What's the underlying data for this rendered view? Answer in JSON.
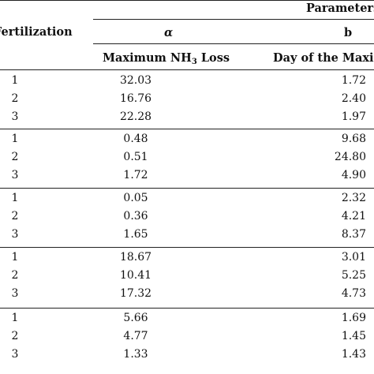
{
  "header": {
    "parameters": "Parameters",
    "fertilization": "Fertilization",
    "alpha": "α",
    "b": "b",
    "max_loss_pre": "Maximum NH",
    "max_loss_sub": "3",
    "max_loss_post": " Loss",
    "day_of_max": "Day of the Maxim"
  },
  "groups": [
    {
      "rows": [
        {
          "f": "1",
          "alpha": "32.03",
          "b": "1.72"
        },
        {
          "f": "2",
          "alpha": "16.76",
          "b": "2.40"
        },
        {
          "f": "3",
          "alpha": "22.28",
          "b": "1.97"
        }
      ]
    },
    {
      "rows": [
        {
          "f": "1",
          "alpha": "0.48",
          "b": "9.68"
        },
        {
          "f": "2",
          "alpha": "0.51",
          "b": "24.80"
        },
        {
          "f": "3",
          "alpha": "1.72",
          "b": "4.90"
        }
      ]
    },
    {
      "rows": [
        {
          "f": "1",
          "alpha": "0.05",
          "b": "2.32"
        },
        {
          "f": "2",
          "alpha": "0.36",
          "b": "4.21"
        },
        {
          "f": "3",
          "alpha": "1.65",
          "b": "8.37"
        }
      ]
    },
    {
      "rows": [
        {
          "f": "1",
          "alpha": "18.67",
          "b": "3.01"
        },
        {
          "f": "2",
          "alpha": "10.41",
          "b": "5.25"
        },
        {
          "f": "3",
          "alpha": "17.32",
          "b": "4.73"
        }
      ]
    },
    {
      "rows": [
        {
          "f": "1",
          "alpha": "5.66",
          "b": "1.69"
        },
        {
          "f": "2",
          "alpha": "4.77",
          "b": "1.45"
        },
        {
          "f": "3",
          "alpha": "1.33",
          "b": "1.43"
        }
      ]
    }
  ]
}
